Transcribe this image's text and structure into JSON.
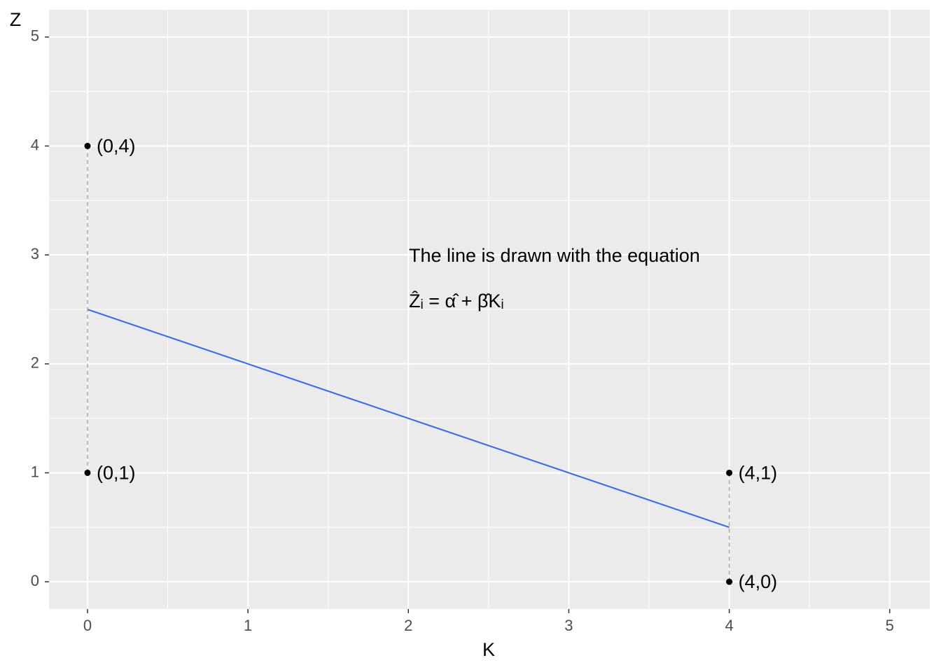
{
  "chart_data": {
    "type": "scatter",
    "x_label": "K",
    "y_label": "Z",
    "x": [
      0,
      0,
      4,
      4
    ],
    "values": [
      4,
      1,
      1,
      0
    ],
    "point_labels": [
      "(0,4)",
      "(0,1)",
      "(4,1)",
      "(4,0)"
    ],
    "color": "#000000",
    "fitted": [
      2.5,
      2.5,
      0.5,
      0.5
    ],
    "fit_line": {
      "x": [
        0,
        4
      ],
      "values": [
        2.5,
        0.5
      ],
      "color": "#3366ff"
    },
    "annotation": [
      "The line is drawn with the equation",
      "Ẑᵢ = α̂ + β̂Kᵢ"
    ],
    "xlim": [
      -0.24,
      5.25
    ],
    "ylim": [
      -0.25,
      5.25
    ],
    "xticks": [
      0,
      1,
      2,
      3,
      4,
      5
    ],
    "yticks": [
      0,
      1,
      2,
      3,
      4,
      5
    ],
    "grid": true
  }
}
